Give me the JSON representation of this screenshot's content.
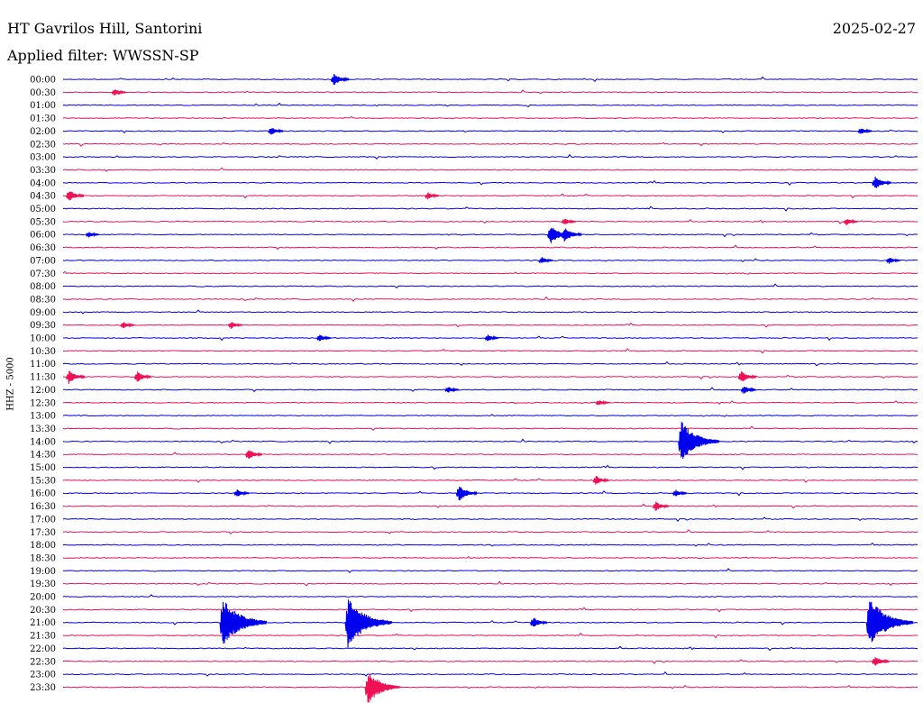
{
  "header": {
    "title": "HT Gavrilos Hill, Santorini",
    "date": "2025-02-27",
    "filter": "Applied filter: WWSSN-SP"
  },
  "colors": {
    "even_row": "#0000ee",
    "odd_row": "#ee1155",
    "background": "#ffffff"
  },
  "chart_data": {
    "type": "line",
    "ylabel": "HHZ - 5000",
    "tick_labels": [
      "00:00",
      "00:30",
      "01:00",
      "01:30",
      "02:00",
      "02:30",
      "03:00",
      "03:30",
      "04:00",
      "04:30",
      "05:00",
      "05:30",
      "06:00",
      "06:30",
      "07:00",
      "07:30",
      "08:00",
      "08:30",
      "09:00",
      "09:30",
      "10:00",
      "10:30",
      "11:00",
      "11:30",
      "12:00",
      "12:30",
      "13:00",
      "13:30",
      "14:00",
      "14:30",
      "15:00",
      "15:30",
      "16:00",
      "16:30",
      "17:00",
      "17:30",
      "18:00",
      "18:30",
      "19:00",
      "19:30",
      "20:00",
      "20:30",
      "21:00",
      "21:30",
      "22:00",
      "22:30",
      "23:00",
      "23:30"
    ],
    "row_duration_minutes": 30,
    "events": [
      {
        "row": "00:00",
        "minute": 9.5,
        "amp": 0.5
      },
      {
        "row": "00:30",
        "minute": 1.8,
        "amp": 0.3
      },
      {
        "row": "02:00",
        "minute": 7.3,
        "amp": 0.35
      },
      {
        "row": "02:00",
        "minute": 28.0,
        "amp": 0.3
      },
      {
        "row": "04:00",
        "minute": 28.5,
        "amp": 0.55
      },
      {
        "row": "04:30",
        "minute": 0.2,
        "amp": 0.5
      },
      {
        "row": "04:30",
        "minute": 12.8,
        "amp": 0.3
      },
      {
        "row": "05:30",
        "minute": 17.6,
        "amp": 0.3
      },
      {
        "row": "05:30",
        "minute": 27.5,
        "amp": 0.3
      },
      {
        "row": "06:00",
        "minute": 17.1,
        "amp": 0.75
      },
      {
        "row": "06:00",
        "minute": 17.6,
        "amp": 0.6
      },
      {
        "row": "06:00",
        "minute": 0.9,
        "amp": 0.25
      },
      {
        "row": "07:00",
        "minute": 16.8,
        "amp": 0.3
      },
      {
        "row": "07:00",
        "minute": 29.0,
        "amp": 0.3
      },
      {
        "row": "09:30",
        "minute": 2.1,
        "amp": 0.3
      },
      {
        "row": "09:30",
        "minute": 5.9,
        "amp": 0.3
      },
      {
        "row": "10:00",
        "minute": 9.0,
        "amp": 0.3
      },
      {
        "row": "10:00",
        "minute": 14.9,
        "amp": 0.3
      },
      {
        "row": "11:30",
        "minute": 0.2,
        "amp": 0.55
      },
      {
        "row": "11:30",
        "minute": 2.6,
        "amp": 0.45
      },
      {
        "row": "11:30",
        "minute": 23.8,
        "amp": 0.5
      },
      {
        "row": "12:00",
        "minute": 13.5,
        "amp": 0.3
      },
      {
        "row": "12:00",
        "minute": 23.9,
        "amp": 0.35
      },
      {
        "row": "12:30",
        "minute": 18.8,
        "amp": 0.25
      },
      {
        "row": "14:00",
        "minute": 21.7,
        "amp": 1.65
      },
      {
        "row": "14:30",
        "minute": 6.5,
        "amp": 0.45
      },
      {
        "row": "15:30",
        "minute": 18.7,
        "amp": 0.4
      },
      {
        "row": "16:00",
        "minute": 6.1,
        "amp": 0.35
      },
      {
        "row": "16:00",
        "minute": 13.9,
        "amp": 0.65
      },
      {
        "row": "16:00",
        "minute": 21.5,
        "amp": 0.3
      },
      {
        "row": "16:30",
        "minute": 20.8,
        "amp": 0.4
      },
      {
        "row": "21:00",
        "minute": 5.6,
        "amp": 1.95
      },
      {
        "row": "21:00",
        "minute": 10.0,
        "amp": 1.95
      },
      {
        "row": "21:00",
        "minute": 16.5,
        "amp": 0.45
      },
      {
        "row": "21:00",
        "minute": 28.3,
        "amp": 1.95
      },
      {
        "row": "22:30",
        "minute": 28.5,
        "amp": 0.45
      },
      {
        "row": "23:30",
        "minute": 10.7,
        "amp": 1.35
      }
    ]
  }
}
